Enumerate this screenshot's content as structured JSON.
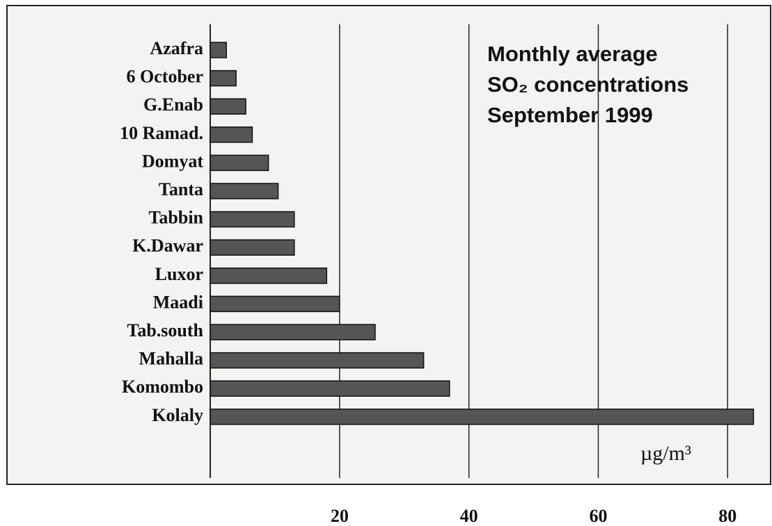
{
  "chart_data": {
    "type": "bar",
    "orientation": "horizontal",
    "title": [
      "Monthly average",
      "SO₂ concentrations",
      "September 1999"
    ],
    "unit_label": "µg/m³",
    "categories": [
      "Azafra",
      "6 October",
      "G.Enab",
      "10 Ramad.",
      "Domyat",
      "Tanta",
      "Tabbin",
      "K.Dawar",
      "Luxor",
      "Maadi",
      "Tab.south",
      "Mahalla",
      "Komombo",
      "Kolaly"
    ],
    "values": [
      2.5,
      4,
      5.5,
      6.5,
      9,
      10.5,
      13,
      13,
      18,
      20,
      25.5,
      33,
      37,
      84
    ],
    "color": "#555555",
    "xlim": [
      0,
      86
    ],
    "xticks": [
      20,
      40,
      60,
      80
    ],
    "grid": true
  }
}
